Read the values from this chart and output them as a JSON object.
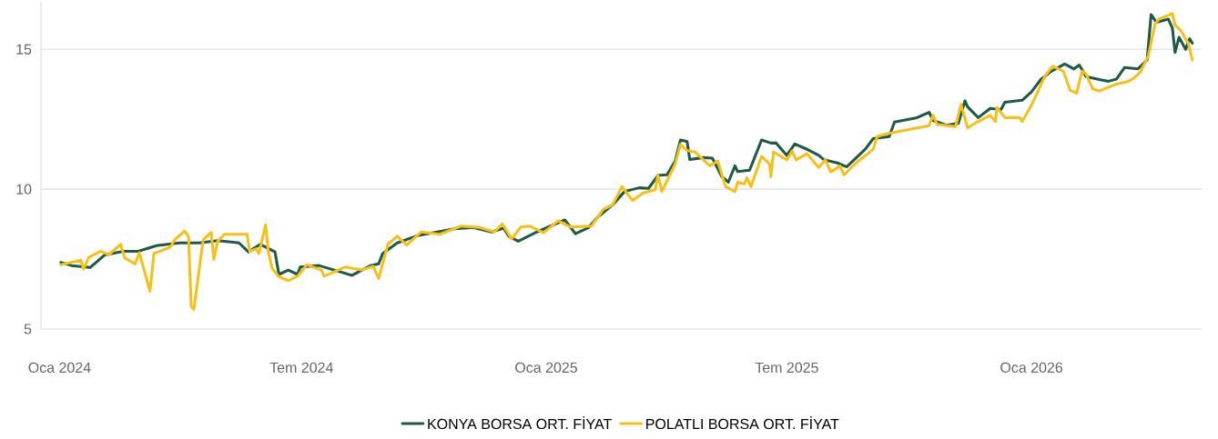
{
  "chart_data": {
    "type": "line",
    "grid": "y",
    "legend": "bottom",
    "xlim": [
      "2023-12-18",
      "2026-05-09"
    ],
    "ylim": [
      5,
      16.7
    ],
    "yticks": [
      5,
      10,
      15
    ],
    "xticks": [
      {
        "value": "2024-01-01",
        "label": "Oca 2024"
      },
      {
        "value": "2024-07-01",
        "label": "Tem 2024"
      },
      {
        "value": "2025-01-01",
        "label": "Oca 2025"
      },
      {
        "value": "2025-07-01",
        "label": "Tem 2025"
      },
      {
        "value": "2026-01-01",
        "label": "Oca 2026"
      }
    ],
    "series": [
      {
        "name": "KONYA BORSA ORT. FİYAT",
        "color": "#1e5a46",
        "x": [
          "2024-01-02",
          "2024-01-10",
          "2024-01-24",
          "2024-02-04",
          "2024-02-18",
          "2024-02-29",
          "2024-03-14",
          "2024-03-31",
          "2024-04-15",
          "2024-04-29",
          "2024-05-15",
          "2024-05-22",
          "2024-05-31",
          "2024-06-11",
          "2024-06-14",
          "2024-06-21",
          "2024-06-28",
          "2024-06-30",
          "2024-07-14",
          "2024-07-29",
          "2024-08-08",
          "2024-08-22",
          "2024-08-28",
          "2024-08-31",
          "2024-09-11",
          "2024-09-27",
          "2024-10-11",
          "2024-10-24",
          "2024-11-07",
          "2024-11-21",
          "2024-11-30",
          "2024-12-04",
          "2024-12-11",
          "2024-12-25",
          "2025-01-15",
          "2025-01-23",
          "2025-02-02",
          "2025-02-09",
          "2025-02-20",
          "2025-03-01",
          "2025-03-12",
          "2025-03-19",
          "2025-03-26",
          "2025-04-02",
          "2025-04-08",
          "2025-04-12",
          "2025-04-17",
          "2025-04-19",
          "2025-04-29",
          "2025-05-06",
          "2025-05-13",
          "2025-05-18",
          "2025-05-23",
          "2025-05-25",
          "2025-06-03",
          "2025-06-12",
          "2025-06-19",
          "2025-06-23",
          "2025-07-01",
          "2025-07-07",
          "2025-07-17",
          "2025-07-25",
          "2025-07-29",
          "2025-08-08",
          "2025-08-15",
          "2025-08-29",
          "2025-09-04",
          "2025-09-16",
          "2025-09-20",
          "2025-10-07",
          "2025-10-16",
          "2025-10-19",
          "2025-10-29",
          "2025-11-07",
          "2025-11-12",
          "2025-11-14",
          "2025-11-22",
          "2025-12-01",
          "2025-12-09",
          "2025-12-12",
          "2025-12-25",
          "2026-01-01",
          "2026-01-08",
          "2026-01-15",
          "2026-01-26",
          "2026-02-02",
          "2026-02-06",
          "2026-02-11",
          "2026-02-21",
          "2026-02-28",
          "2026-03-06",
          "2026-03-12",
          "2026-03-22",
          "2026-03-29",
          "2026-04-01",
          "2026-04-05",
          "2026-04-14",
          "2026-04-17",
          "2026-04-19",
          "2026-04-22",
          "2026-04-27",
          "2026-04-30",
          "2026-05-02"
        ],
        "values": [
          7.38,
          7.27,
          7.2,
          7.65,
          7.78,
          7.78,
          7.98,
          8.08,
          8.08,
          8.16,
          8.08,
          7.76,
          8.03,
          7.76,
          6.95,
          7.11,
          6.95,
          7.22,
          7.27,
          7.06,
          6.92,
          7.27,
          7.33,
          7.7,
          8.08,
          8.35,
          8.47,
          8.58,
          8.63,
          8.47,
          8.61,
          8.31,
          8.14,
          8.47,
          8.9,
          8.41,
          8.63,
          9.01,
          9.44,
          9.92,
          10.05,
          10.03,
          10.49,
          10.52,
          11.0,
          11.76,
          11.7,
          11.06,
          11.13,
          11.11,
          10.46,
          10.25,
          10.84,
          10.63,
          10.68,
          11.76,
          11.65,
          11.65,
          11.21,
          11.62,
          11.41,
          11.21,
          11.05,
          10.94,
          10.8,
          11.43,
          11.81,
          11.88,
          12.4,
          12.56,
          12.75,
          12.46,
          12.29,
          12.35,
          13.16,
          12.94,
          12.56,
          12.89,
          12.84,
          13.11,
          13.18,
          13.48,
          13.92,
          14.19,
          14.48,
          14.3,
          14.44,
          14.03,
          13.92,
          13.86,
          13.94,
          14.35,
          14.3,
          14.62,
          16.24,
          15.97,
          16.08,
          15.76,
          14.89,
          15.43,
          15.0,
          15.38,
          15.22
        ]
      },
      {
        "name": "POLATLI BORSA ORT. FİYAT",
        "color": "#f5c018",
        "x": [
          "2024-01-02",
          "2024-01-17",
          "2024-01-19",
          "2024-01-23",
          "2024-02-01",
          "2024-02-07",
          "2024-02-16",
          "2024-02-19",
          "2024-02-27",
          "2024-03-01",
          "2024-03-09",
          "2024-03-12",
          "2024-03-24",
          "2024-03-28",
          "2024-04-04",
          "2024-04-07",
          "2024-04-09",
          "2024-04-11",
          "2024-04-18",
          "2024-04-24",
          "2024-04-26",
          "2024-04-29",
          "2024-05-04",
          "2024-05-21",
          "2024-05-23",
          "2024-05-28",
          "2024-05-30",
          "2024-06-04",
          "2024-06-06",
          "2024-06-09",
          "2024-06-14",
          "2024-06-21",
          "2024-06-28",
          "2024-07-05",
          "2024-07-16",
          "2024-07-18",
          "2024-08-03",
          "2024-08-15",
          "2024-08-24",
          "2024-08-28",
          "2024-09-04",
          "2024-09-11",
          "2024-09-18",
          "2024-09-29",
          "2024-10-13",
          "2024-10-29",
          "2024-11-12",
          "2024-11-23",
          "2024-11-29",
          "2024-12-06",
          "2024-12-13",
          "2024-12-20",
          "2024-12-30",
          "2025-01-10",
          "2025-01-19",
          "2025-02-04",
          "2025-02-13",
          "2025-02-20",
          "2025-02-27",
          "2025-03-07",
          "2025-03-15",
          "2025-03-24",
          "2025-03-26",
          "2025-03-29",
          "2025-04-08",
          "2025-04-12",
          "2025-04-17",
          "2025-04-23",
          "2025-05-04",
          "2025-05-10",
          "2025-05-16",
          "2025-05-23",
          "2025-05-25",
          "2025-05-30",
          "2025-06-01",
          "2025-06-04",
          "2025-06-12",
          "2025-06-18",
          "2025-06-19",
          "2025-06-21",
          "2025-07-01",
          "2025-07-05",
          "2025-07-08",
          "2025-07-16",
          "2025-07-25",
          "2025-07-30",
          "2025-08-03",
          "2025-08-10",
          "2025-08-13",
          "2025-08-22",
          "2025-08-31",
          "2025-09-04",
          "2025-09-07",
          "2025-09-13",
          "2025-10-16",
          "2025-10-19",
          "2025-10-22",
          "2025-11-05",
          "2025-11-09",
          "2025-11-14",
          "2025-11-21",
          "2025-12-01",
          "2025-12-05",
          "2025-12-06",
          "2025-12-12",
          "2025-12-23",
          "2025-12-25",
          "2026-01-01",
          "2026-01-11",
          "2026-01-17",
          "2026-01-25",
          "2026-01-30",
          "2026-02-04",
          "2026-02-08",
          "2026-02-11",
          "2026-02-16",
          "2026-02-21",
          "2026-02-28",
          "2026-03-06",
          "2026-03-15",
          "2026-03-19",
          "2026-03-24",
          "2026-03-30",
          "2026-04-04",
          "2026-04-07",
          "2026-04-17",
          "2026-04-19",
          "2026-04-23",
          "2026-04-29",
          "2026-05-02"
        ],
        "values": [
          7.3,
          7.46,
          7.14,
          7.56,
          7.78,
          7.65,
          8.03,
          7.54,
          7.33,
          7.73,
          6.35,
          7.7,
          7.92,
          8.21,
          8.5,
          8.3,
          5.81,
          5.7,
          8.19,
          8.46,
          7.49,
          8.14,
          8.39,
          8.39,
          7.78,
          7.87,
          7.7,
          8.73,
          7.76,
          7.16,
          6.87,
          6.73,
          6.89,
          7.3,
          7.11,
          6.89,
          7.22,
          7.11,
          7.24,
          6.81,
          8.03,
          8.32,
          8.0,
          8.47,
          8.39,
          8.68,
          8.63,
          8.47,
          8.76,
          8.22,
          8.65,
          8.68,
          8.44,
          8.87,
          8.65,
          8.68,
          9.28,
          9.44,
          10.09,
          9.6,
          9.87,
          9.98,
          10.49,
          9.92,
          10.9,
          11.6,
          11.38,
          11.33,
          10.84,
          11.0,
          10.09,
          9.92,
          10.25,
          10.19,
          10.41,
          10.09,
          11.17,
          10.9,
          10.44,
          11.33,
          11.05,
          11.37,
          11.05,
          11.27,
          10.78,
          11.05,
          10.62,
          10.83,
          10.51,
          10.94,
          11.27,
          11.43,
          11.88,
          11.97,
          12.27,
          12.64,
          12.32,
          12.24,
          13.03,
          12.19,
          12.4,
          12.64,
          12.42,
          12.92,
          12.56,
          12.56,
          12.42,
          13.0,
          14.03,
          14.4,
          14.22,
          13.54,
          13.43,
          14.22,
          14.13,
          13.59,
          13.51,
          13.65,
          13.76,
          13.86,
          13.97,
          14.19,
          14.78,
          15.92,
          16.08,
          16.28,
          15.87,
          15.7,
          15.22,
          14.62
        ]
      }
    ]
  }
}
